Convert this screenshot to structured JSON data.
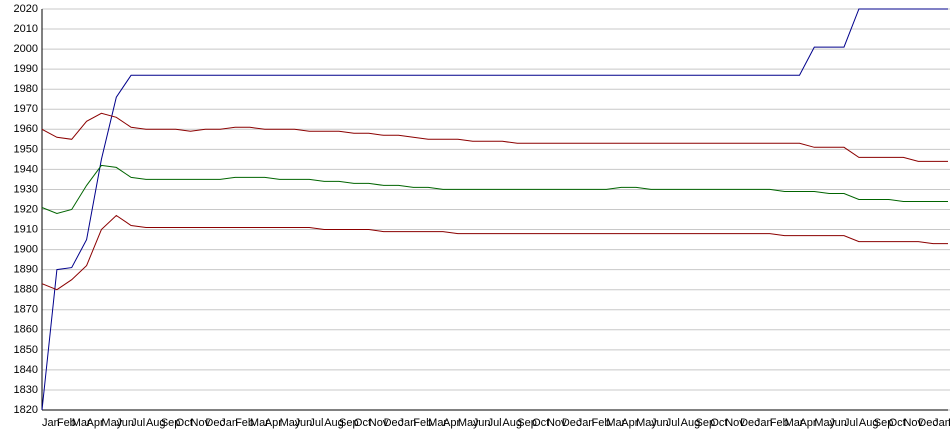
{
  "chart_data": {
    "type": "line",
    "categories": [
      "Jan",
      "Feb",
      "Mar",
      "Apr",
      "May",
      "Jun",
      "Jul",
      "Aug",
      "Sep",
      "Oct",
      "Nov",
      "Dec",
      "Jan",
      "Feb",
      "Mar",
      "Apr",
      "May",
      "Jun",
      "Jul",
      "Aug",
      "Sep",
      "Oct",
      "Nov",
      "Dec",
      "Jan",
      "Feb",
      "Mar",
      "Apr",
      "May",
      "Jun",
      "Jul",
      "Aug",
      "Sep",
      "Oct",
      "Nov",
      "Dec",
      "Jan",
      "Feb",
      "Mar",
      "Apr",
      "May",
      "Jun",
      "Jul",
      "Aug",
      "Sep",
      "Oct",
      "Nov",
      "Dec",
      "Jan",
      "Feb",
      "Mar",
      "Apr",
      "May",
      "Jun",
      "Jul",
      "Aug",
      "Sep",
      "Oct",
      "Nov",
      "Dec",
      "Jan",
      "Feb"
    ],
    "series": [
      {
        "color": "#00008b",
        "values": [
          1820,
          1890,
          1891,
          1905,
          1945,
          1976,
          1987,
          1987,
          1987,
          1987,
          1987,
          1987,
          1987,
          1987,
          1987,
          1987,
          1987,
          1987,
          1987,
          1987,
          1987,
          1987,
          1987,
          1987,
          1987,
          1987,
          1987,
          1987,
          1987,
          1987,
          1987,
          1987,
          1987,
          1987,
          1987,
          1987,
          1987,
          1987,
          1987,
          1987,
          1987,
          1987,
          1987,
          1987,
          1987,
          1987,
          1987,
          1987,
          1987,
          1987,
          1987,
          1987,
          2001,
          2001,
          2001,
          2020,
          2020,
          2020,
          2020,
          2020,
          2020,
          2020
        ]
      },
      {
        "color": "#8b0000",
        "values": [
          1960,
          1956,
          1955,
          1964,
          1968,
          1966,
          1961,
          1960,
          1960,
          1960,
          1959,
          1960,
          1960,
          1961,
          1961,
          1960,
          1960,
          1960,
          1959,
          1959,
          1959,
          1958,
          1958,
          1957,
          1957,
          1956,
          1955,
          1955,
          1955,
          1954,
          1954,
          1954,
          1953,
          1953,
          1953,
          1953,
          1953,
          1953,
          1953,
          1953,
          1953,
          1953,
          1953,
          1953,
          1953,
          1953,
          1953,
          1953,
          1953,
          1953,
          1953,
          1953,
          1951,
          1951,
          1951,
          1946,
          1946,
          1946,
          1946,
          1944,
          1944,
          1944
        ]
      },
      {
        "color": "#006400",
        "values": [
          1921,
          1918,
          1920,
          1932,
          1942,
          1941,
          1936,
          1935,
          1935,
          1935,
          1935,
          1935,
          1935,
          1936,
          1936,
          1936,
          1935,
          1935,
          1935,
          1934,
          1934,
          1933,
          1933,
          1932,
          1932,
          1931,
          1931,
          1930,
          1930,
          1930,
          1930,
          1930,
          1930,
          1930,
          1930,
          1930,
          1930,
          1930,
          1930,
          1931,
          1931,
          1930,
          1930,
          1930,
          1930,
          1930,
          1930,
          1930,
          1930,
          1930,
          1929,
          1929,
          1929,
          1928,
          1928,
          1925,
          1925,
          1925,
          1924,
          1924,
          1924,
          1924
        ]
      },
      {
        "color": "#8b0000",
        "values": [
          1883,
          1880,
          1885,
          1892,
          1910,
          1917,
          1912,
          1911,
          1911,
          1911,
          1911,
          1911,
          1911,
          1911,
          1911,
          1911,
          1911,
          1911,
          1911,
          1910,
          1910,
          1910,
          1910,
          1909,
          1909,
          1909,
          1909,
          1909,
          1908,
          1908,
          1908,
          1908,
          1908,
          1908,
          1908,
          1908,
          1908,
          1908,
          1908,
          1908,
          1908,
          1908,
          1908,
          1908,
          1908,
          1908,
          1908,
          1908,
          1908,
          1908,
          1907,
          1907,
          1907,
          1907,
          1907,
          1904,
          1904,
          1904,
          1904,
          1904,
          1903,
          1903
        ]
      }
    ],
    "ylim": [
      1820,
      2020
    ],
    "yticks": [
      1820,
      1830,
      1840,
      1850,
      1860,
      1870,
      1880,
      1890,
      1900,
      1910,
      1920,
      1930,
      1940,
      1950,
      1960,
      1970,
      1980,
      1990,
      2000,
      2010,
      2020
    ],
    "grid": true
  }
}
